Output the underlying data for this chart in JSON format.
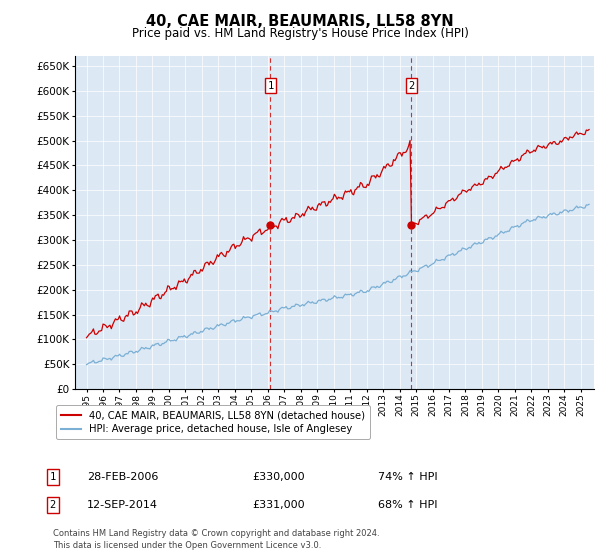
{
  "title": "40, CAE MAIR, BEAUMARIS, LL58 8YN",
  "subtitle": "Price paid vs. HM Land Registry's House Price Index (HPI)",
  "ylim": [
    0,
    670000
  ],
  "yticks": [
    0,
    50000,
    100000,
    150000,
    200000,
    250000,
    300000,
    350000,
    400000,
    450000,
    500000,
    550000,
    600000,
    650000
  ],
  "hpi_color": "#7bafd4",
  "price_color": "#cc0000",
  "sale1_date": 2006.16,
  "sale1_price": 330000,
  "sale2_date": 2014.71,
  "sale2_price": 331000,
  "vline_color": "#cc0000",
  "plot_background": "#dce9f5",
  "grid_color": "#ffffff",
  "legend_label_price": "40, CAE MAIR, BEAUMARIS, LL58 8YN (detached house)",
  "legend_label_hpi": "HPI: Average price, detached house, Isle of Anglesey",
  "footer1": "Contains HM Land Registry data © Crown copyright and database right 2024.",
  "footer2": "This data is licensed under the Open Government Licence v3.0.",
  "table_row1": [
    "1",
    "28-FEB-2006",
    "£330,000",
    "74% ↑ HPI"
  ],
  "table_row2": [
    "2",
    "12-SEP-2014",
    "£331,000",
    "68% ↑ HPI"
  ]
}
